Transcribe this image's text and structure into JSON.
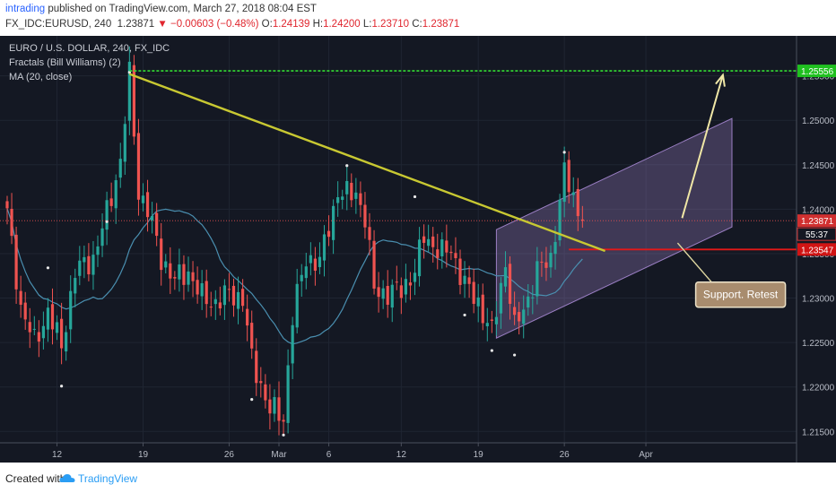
{
  "header": {
    "author": "intrading",
    "published": " published on TradingView.com, March 27, 2018 08:04 EST",
    "symbol": "FX_IDC:EURUSD, 240",
    "last": "1.23871",
    "change": "−0.00603 (−0.48%)",
    "o_label": "O:",
    "o_val": "1.24139",
    "h_label": "H:",
    "h_val": "1.24200",
    "l_label": "L:",
    "l_val": "1.23710",
    "c_label": "C:",
    "c_val": "1.23871"
  },
  "legend": {
    "title": "EURO / U.S. DOLLAR, 240, FX_IDC",
    "fractals": "Fractals (Bill Williams) (2)",
    "ma": "MA (20, close)"
  },
  "footer": {
    "created": "Created with",
    "brand": "TradingView"
  },
  "colors": {
    "bg": "#141823",
    "up": "#26a69a",
    "down": "#ef5350",
    "ma": "#4a8fb0",
    "trend": "#c8c832",
    "support": "#e31818",
    "target": "#33dd33",
    "channel": "#9b7fc4",
    "arrow": "#f0e7a6"
  },
  "chart_data": {
    "type": "candlestick",
    "title": "EURO / U.S. DOLLAR, 240, FX_IDC",
    "indicators": [
      "Fractals (Bill Williams) (2)",
      "MA (20, close)"
    ],
    "ylim": [
      1.2115,
      1.2595
    ],
    "y_ticks": [
      1.215,
      1.22,
      1.225,
      1.23,
      1.235,
      1.24,
      1.245,
      1.25,
      1.255
    ],
    "y_tick_labels": [
      "1.21500",
      "1.22000",
      "1.22500",
      "1.23000",
      "1.23500",
      "1.24000",
      "1.24500",
      "1.25000",
      "1.25500"
    ],
    "x_tick_labels": [
      "12",
      "19",
      "26",
      "Mar",
      "6",
      "12",
      "19",
      "26",
      "Apr"
    ],
    "x_tick_bars": [
      11,
      30,
      49,
      60,
      71,
      87,
      104,
      123,
      141
    ],
    "anchors": [
      [
        0,
        1.2395
      ],
      [
        3,
        1.229
      ],
      [
        6,
        1.225
      ],
      [
        9,
        1.2285
      ],
      [
        12,
        1.2245
      ],
      [
        15,
        1.233
      ],
      [
        19,
        1.2345
      ],
      [
        22,
        1.2395
      ],
      [
        25,
        1.2455
      ],
      [
        27,
        1.255
      ],
      [
        29,
        1.242
      ],
      [
        31,
        1.24
      ],
      [
        34,
        1.2345
      ],
      [
        37,
        1.232
      ],
      [
        40,
        1.233
      ],
      [
        43,
        1.23
      ],
      [
        46,
        1.2295
      ],
      [
        49,
        1.2305
      ],
      [
        52,
        1.23
      ],
      [
        54,
        1.223
      ],
      [
        58,
        1.2175
      ],
      [
        61,
        1.2165
      ],
      [
        63,
        1.228
      ],
      [
        66,
        1.2345
      ],
      [
        69,
        1.234
      ],
      [
        71,
        1.238
      ],
      [
        73,
        1.242
      ],
      [
        75,
        1.2415
      ],
      [
        77,
        1.242
      ],
      [
        79,
        1.239
      ],
      [
        81,
        1.231
      ],
      [
        84,
        1.2305
      ],
      [
        87,
        1.231
      ],
      [
        90,
        1.233
      ],
      [
        92,
        1.237
      ],
      [
        94,
        1.236
      ],
      [
        96,
        1.235
      ],
      [
        98,
        1.2355
      ],
      [
        101,
        1.2315
      ],
      [
        104,
        1.2295
      ],
      [
        107,
        1.226
      ],
      [
        110,
        1.234
      ],
      [
        112,
        1.2265
      ],
      [
        115,
        1.23
      ],
      [
        117,
        1.233
      ],
      [
        120,
        1.2345
      ],
      [
        123,
        1.244
      ],
      [
        126,
        1.24
      ],
      [
        127,
        1.23871
      ]
    ],
    "fractals_high": [
      [
        9,
        1.233
      ],
      [
        27,
        1.255
      ],
      [
        75,
        1.2445
      ],
      [
        90,
        1.241
      ],
      [
        123,
        1.246
      ]
    ],
    "fractals_low": [
      [
        12,
        1.2205
      ],
      [
        22,
        1.239
      ],
      [
        54,
        1.219
      ],
      [
        61,
        1.215
      ],
      [
        101,
        1.2285
      ],
      [
        107,
        1.2245
      ],
      [
        112,
        1.224
      ]
    ],
    "price_lines": [
      {
        "label": "1.25556",
        "value": 1.25556,
        "style": "dashed-green"
      },
      {
        "label": "1.23871",
        "value": 1.23871,
        "style": "dotted-red"
      },
      {
        "label": "1.23547",
        "value": 1.23547,
        "style": "solid-red"
      }
    ],
    "countdown": "55:37",
    "trendline": [
      [
        27,
        1.2552
      ],
      [
        132,
        1.2353
      ]
    ],
    "channel": [
      [
        108,
        1.2377
      ],
      [
        160,
        1.2502
      ],
      [
        160,
        1.238
      ],
      [
        108,
        1.2255
      ]
    ],
    "annotations": [
      {
        "text": "Support. Retest"
      }
    ]
  }
}
